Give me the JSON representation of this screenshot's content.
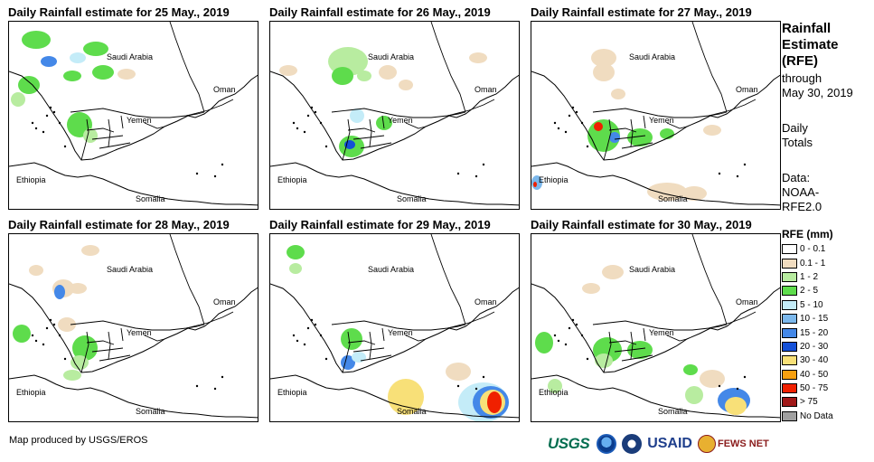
{
  "panels": [
    {
      "title": "Daily Rainfall estimate for 25 May., 2019",
      "day": "25"
    },
    {
      "title": "Daily Rainfall estimate for 26 May., 2019",
      "day": "26"
    },
    {
      "title": "Daily Rainfall estimate for 27 May., 2019",
      "day": "27"
    },
    {
      "title": "Daily Rainfall estimate for 28 May., 2019",
      "day": "28"
    },
    {
      "title": "Daily Rainfall estimate for 29 May., 2019",
      "day": "29"
    },
    {
      "title": "Daily Rainfall estimate for 30 May., 2019",
      "day": "30"
    }
  ],
  "map_labels": {
    "saudi": "Saudi Arabia",
    "oman": "Oman",
    "yemen": "Yemen",
    "ethiopia": "Ethiopia",
    "somalia": "Somalia"
  },
  "sidebar": {
    "title_lines": [
      "Rainfall",
      "Estimate",
      "(RFE)"
    ],
    "through": "through",
    "through_date": "May 30, 2019",
    "daily": "Daily",
    "totals": "Totals",
    "data_label": "Data:",
    "data_source_1": "NOAA-",
    "data_source_2": "RFE2.0"
  },
  "legend": {
    "title": "RFE (mm)",
    "items": [
      {
        "label": "0 - 0.1",
        "color": "#ffffff"
      },
      {
        "label": "0.1 - 1",
        "color": "#f0dcc0"
      },
      {
        "label": "1 - 2",
        "color": "#b8eca0"
      },
      {
        "label": "2 - 5",
        "color": "#5edc4c"
      },
      {
        "label": "5 - 10",
        "color": "#c4ecf8"
      },
      {
        "label": "10 - 15",
        "color": "#7cb8ec"
      },
      {
        "label": "15 - 20",
        "color": "#4488e8"
      },
      {
        "label": "20 - 30",
        "color": "#1450d8"
      },
      {
        "label": "30 - 40",
        "color": "#f8e078"
      },
      {
        "label": "40 - 50",
        "color": "#f8a010"
      },
      {
        "label": "50 - 75",
        "color": "#f02000"
      },
      {
        "label": "> 75",
        "color": "#a01818"
      },
      {
        "label": "No Data",
        "color": "#a0a0a0"
      }
    ]
  },
  "credit": "Map produced by USGS/EROS",
  "logos": {
    "usgs": "USGS",
    "usaid": "USAID",
    "fews": "FEWS NET"
  }
}
